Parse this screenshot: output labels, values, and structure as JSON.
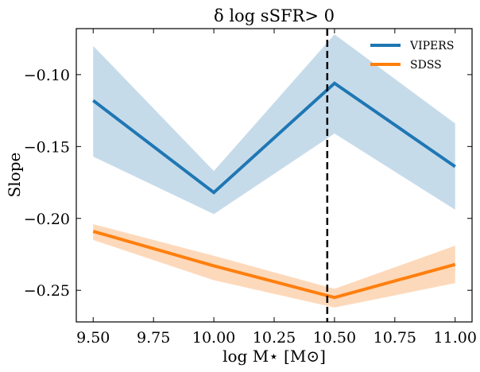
{
  "chart_data": {
    "type": "line",
    "title": "δ log sSFR> 0",
    "xlabel": "log M⋆ [M⊙]",
    "ylabel": "Slope",
    "xlim": [
      9.43,
      11.07
    ],
    "ylim": [
      -0.272,
      -0.068
    ],
    "xticks": [
      9.5,
      9.75,
      10.0,
      10.25,
      10.5,
      10.75,
      11.0
    ],
    "xtick_labels": [
      "9.50",
      "9.75",
      "10.00",
      "10.25",
      "10.50",
      "10.75",
      "11.00"
    ],
    "yticks": [
      -0.1,
      -0.15,
      -0.2,
      -0.25
    ],
    "ytick_labels": [
      "−0.10",
      "−0.15",
      "−0.20",
      "−0.25"
    ],
    "x": [
      9.5,
      10.0,
      10.5,
      11.0
    ],
    "vline_x": 10.47,
    "series": [
      {
        "name": "VIPERS",
        "color": "#1f77b4",
        "band_color": "#c6dbea",
        "values": [
          -0.118,
          -0.182,
          -0.106,
          -0.164
        ],
        "lower": [
          -0.157,
          -0.197,
          -0.141,
          -0.194
        ],
        "upper": [
          -0.08,
          -0.167,
          -0.072,
          -0.134
        ]
      },
      {
        "name": "SDSS",
        "color": "#ff7f0e",
        "band_color": "#fdd9bb",
        "values": [
          -0.209,
          -0.233,
          -0.255,
          -0.232
        ],
        "lower": [
          -0.215,
          -0.243,
          -0.262,
          -0.245
        ],
        "upper": [
          -0.204,
          -0.226,
          -0.249,
          -0.219
        ]
      }
    ],
    "legend_position": "top-right"
  }
}
